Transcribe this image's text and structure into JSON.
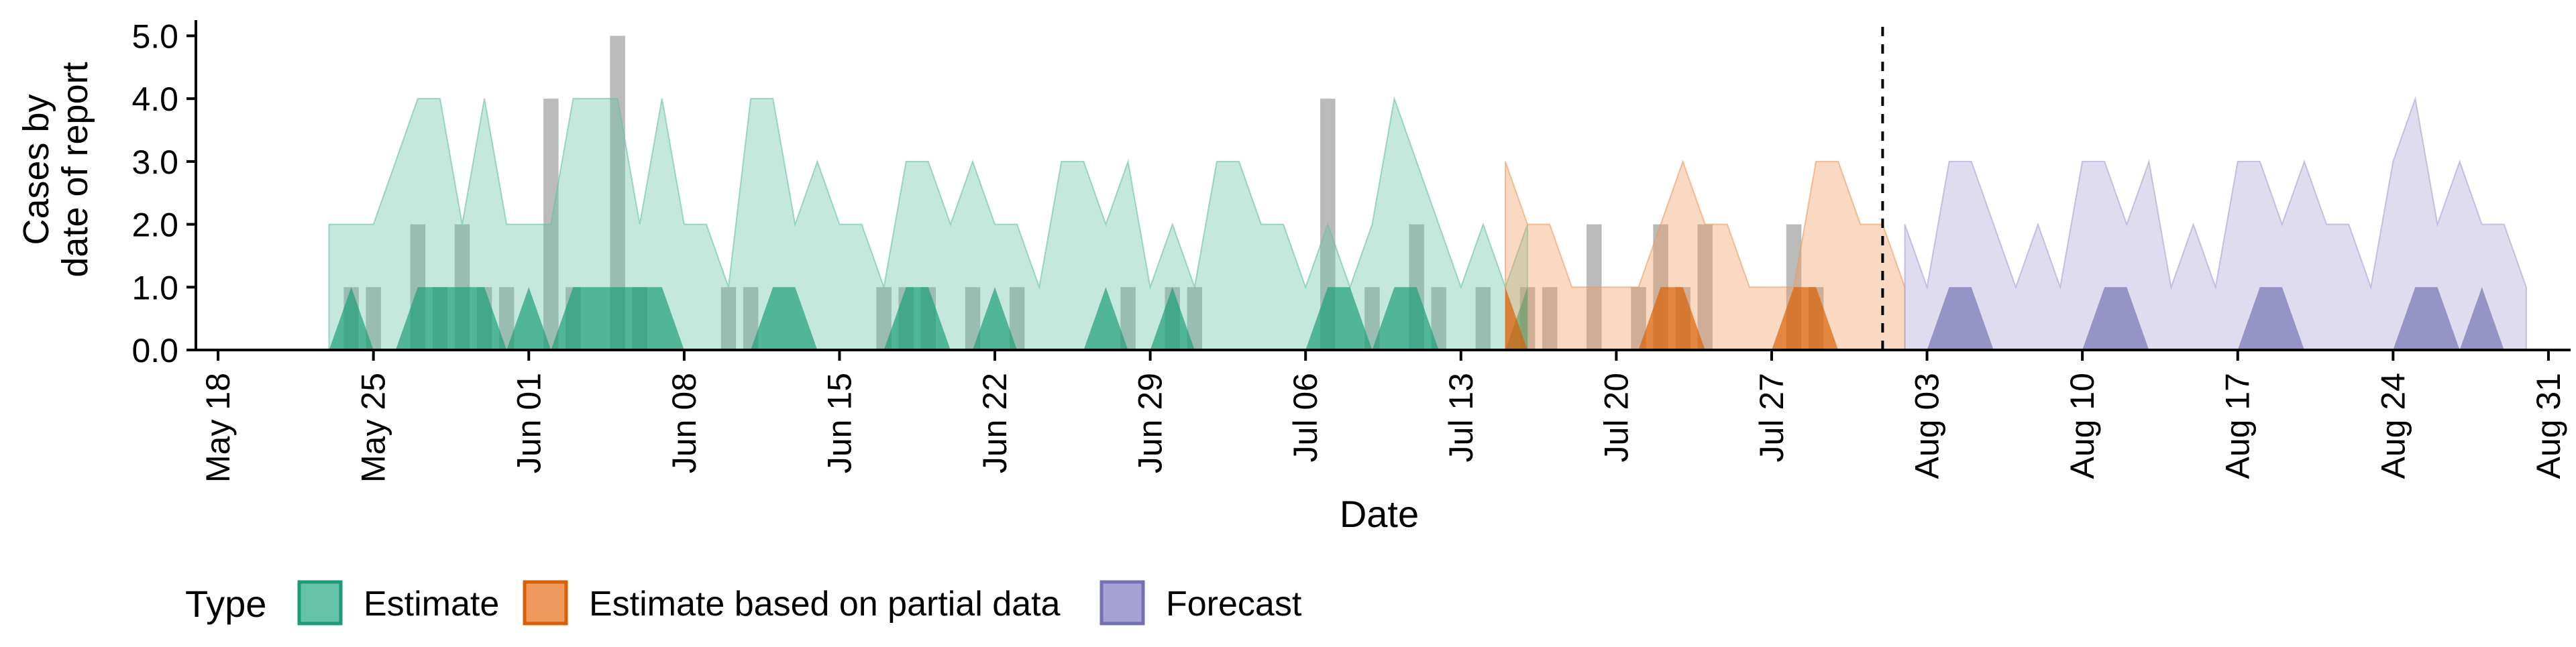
{
  "chart_data": {
    "type": "area",
    "title": "",
    "xlabel": "Date",
    "ylabel": [
      "Cases by",
      "date of report"
    ],
    "ylim": [
      0,
      5.25
    ],
    "y_ticks": [
      "0.0",
      "1.0",
      "2.0",
      "3.0",
      "4.0",
      "5.0"
    ],
    "x_axis": {
      "start": "2020-05-17",
      "end": "2020-09-01",
      "ticks": [
        {
          "date": "2020-05-18",
          "label": "May 18"
        },
        {
          "date": "2020-05-25",
          "label": "May 25"
        },
        {
          "date": "2020-06-01",
          "label": "Jun 01"
        },
        {
          "date": "2020-06-08",
          "label": "Jun 08"
        },
        {
          "date": "2020-06-15",
          "label": "Jun 15"
        },
        {
          "date": "2020-06-22",
          "label": "Jun 22"
        },
        {
          "date": "2020-06-29",
          "label": "Jun 29"
        },
        {
          "date": "2020-07-06",
          "label": "Jul 06"
        },
        {
          "date": "2020-07-13",
          "label": "Jul 13"
        },
        {
          "date": "2020-07-20",
          "label": "Jul 20"
        },
        {
          "date": "2020-07-27",
          "label": "Jul 27"
        },
        {
          "date": "2020-08-03",
          "label": "Aug 03"
        },
        {
          "date": "2020-08-10",
          "label": "Aug 10"
        },
        {
          "date": "2020-08-17",
          "label": "Aug 17"
        },
        {
          "date": "2020-08-24",
          "label": "Aug 24"
        },
        {
          "date": "2020-08-31",
          "label": "Aug 31"
        }
      ]
    },
    "vline_date": "2020-08-01",
    "legend": {
      "title": "Type",
      "placement": "bottom",
      "items": [
        {
          "label": "Estimate",
          "fill": "#66c2a5",
          "stroke": "#1b9e77"
        },
        {
          "label": "Estimate based on partial data",
          "fill": "#ee9a5e",
          "stroke": "#d95f02"
        },
        {
          "label": "Forecast",
          "fill": "#a7a2d3",
          "stroke": "#7570b3"
        }
      ]
    },
    "bars": {
      "color": "#a0a0a0",
      "dates": [
        "2020-05-24",
        "2020-05-25",
        "2020-05-27",
        "2020-05-28",
        "2020-05-29",
        "2020-05-30",
        "2020-05-31",
        "2020-06-02",
        "2020-06-03",
        "2020-06-05",
        "2020-06-06",
        "2020-06-10",
        "2020-06-11",
        "2020-06-17",
        "2020-06-18",
        "2020-06-19",
        "2020-06-21",
        "2020-06-23",
        "2020-06-28",
        "2020-06-30",
        "2020-07-01",
        "2020-07-07",
        "2020-07-09",
        "2020-07-11",
        "2020-07-12",
        "2020-07-14",
        "2020-07-16",
        "2020-07-17",
        "2020-07-19",
        "2020-07-21",
        "2020-07-22",
        "2020-07-23",
        "2020-07-24",
        "2020-07-28",
        "2020-07-29"
      ],
      "values": [
        1,
        1,
        2,
        1,
        2,
        1,
        1,
        4,
        1,
        5,
        1,
        1,
        1,
        1,
        1,
        1,
        1,
        1,
        1,
        1,
        1,
        4,
        1,
        2,
        1,
        1,
        1,
        1,
        2,
        1,
        2,
        1,
        2,
        2,
        1
      ]
    },
    "series": [
      {
        "type": "Estimate",
        "start": "2020-05-23",
        "upper": [
          2,
          2,
          2,
          3,
          4,
          4,
          2,
          4,
          2,
          2,
          2,
          4,
          4,
          4,
          2,
          4,
          2,
          2,
          1,
          4,
          4,
          2,
          3,
          2,
          2,
          1,
          3,
          3,
          2,
          3,
          2,
          2,
          1,
          3,
          3,
          2,
          3,
          1,
          2,
          1,
          3,
          3,
          2,
          2,
          1,
          2,
          1,
          2,
          4,
          3,
          2,
          1,
          2,
          1,
          2
        ],
        "lower50": [
          0,
          1,
          0,
          0,
          1,
          1,
          1,
          1,
          0,
          1,
          0,
          1,
          1,
          1,
          1,
          1,
          0,
          0,
          0,
          0,
          1,
          1,
          0,
          0,
          0,
          0,
          1,
          1,
          0,
          0,
          1,
          0,
          0,
          0,
          0,
          1,
          0,
          0,
          1,
          0,
          0,
          0,
          0,
          0,
          0,
          1,
          1,
          0,
          1,
          1,
          0,
          0,
          0,
          0,
          1
        ]
      },
      {
        "type": "Estimate based on partial data",
        "start": "2020-07-15",
        "upper": [
          3,
          2,
          2,
          1,
          1,
          1,
          1,
          2,
          3,
          2,
          2,
          1,
          1,
          1,
          3,
          3,
          2,
          2,
          1
        ],
        "lower50": [
          1,
          0,
          0,
          0,
          0,
          0,
          0,
          1,
          1,
          0,
          0,
          0,
          0,
          1,
          1,
          0,
          0,
          0,
          0
        ]
      },
      {
        "type": "Forecast",
        "start": "2020-08-02",
        "upper": [
          2,
          1,
          3,
          3,
          2,
          1,
          2,
          1,
          3,
          3,
          2,
          3,
          1,
          2,
          1,
          3,
          3,
          2,
          3,
          2,
          2,
          1,
          3,
          4,
          2,
          3,
          2,
          2,
          1
        ],
        "lower50": [
          0,
          0,
          1,
          1,
          0,
          0,
          0,
          0,
          0,
          1,
          1,
          0,
          0,
          0,
          0,
          0,
          1,
          1,
          0,
          0,
          0,
          0,
          0,
          1,
          1,
          0,
          1,
          0,
          0
        ]
      }
    ]
  }
}
